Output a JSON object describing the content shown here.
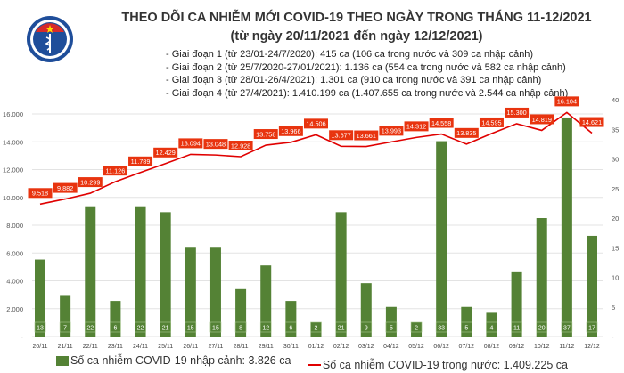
{
  "header": {
    "logo_text": "BỘ Y TẾ",
    "title": "THEO DÕI CA NHIỄM MỚI COVID-19 THEO NGÀY TRONG THÁNG 11-12/2021",
    "subtitle": "(từ ngày 20/11/2021 đến ngày 12/12/2021)",
    "notes": [
      "- Giai đoạn 1 (từ 23/01-24/7/2020): 415 ca (106 ca trong nước và 309 ca nhập cảnh)",
      "- Giai đoạn 2 (từ 25/7/2020-27/01/2021): 1.136 ca (554 ca trong nước và 582 ca nhập cảnh)",
      "- Giai đoạn 3 (từ 28/01-26/4/2021): 1.301 ca (910 ca trong nước và 391 ca nhập cảnh)",
      "- Giai đoạn 4 (từ 27/4/2021): 1.410.199 ca (1.407.655 ca trong nước và 2.544 ca nhập cảnh)"
    ]
  },
  "chart_data": {
    "type": "bar+line",
    "categories": [
      "20/11",
      "21/11",
      "22/11",
      "23/11",
      "24/11",
      "25/11",
      "26/11",
      "27/11",
      "28/11",
      "29/11",
      "30/11",
      "01/12",
      "02/12",
      "03/12",
      "04/12",
      "05/12",
      "06/12",
      "07/12",
      "08/12",
      "09/12",
      "10/12",
      "11/12",
      "12/12"
    ],
    "series": [
      {
        "name": "Số ca nhiễm COVID-19 nhập cảnh: 3.826 ca",
        "type": "bar",
        "axis": "right",
        "color": "#548235",
        "values": [
          13,
          7,
          22,
          6,
          22,
          21,
          15,
          15,
          8,
          12,
          6,
          2,
          21,
          9,
          5,
          2,
          33,
          5,
          4,
          11,
          20,
          37,
          17
        ],
        "labels": [
          "13",
          "7",
          "22",
          "6",
          "22",
          "21",
          "15",
          "15",
          "8",
          "12",
          "6",
          "2",
          "21",
          "9",
          "5",
          "2",
          "33",
          "5",
          "4",
          "11",
          "20",
          "37",
          "17"
        ]
      },
      {
        "name": "Số ca nhiễm COVID-19 trong nước: 1.409.225 ca",
        "type": "line",
        "axis": "left",
        "color": "#e00000",
        "values": [
          9518,
          9882,
          10299,
          11126,
          11789,
          12429,
          13094,
          13048,
          12928,
          13758,
          13966,
          14506,
          13677,
          13661,
          13993,
          14312,
          14558,
          13835,
          14595,
          15300,
          14819,
          16104,
          14621
        ],
        "labels": [
          "9.518",
          "9.882",
          "10.299",
          "11.126",
          "11.789",
          "12.429",
          "13.094",
          "13.048",
          "12.928",
          "13.758",
          "13.966",
          "14.506",
          "13.677",
          "13.661",
          "13.993",
          "14.312",
          "14.558",
          "13.835",
          "14.595",
          "15.300",
          "14.819",
          "16.104",
          "14.621"
        ]
      }
    ],
    "left_axis": {
      "range": [
        0,
        16000
      ],
      "ticks": [
        "-",
        "2.000",
        "4.000",
        "6.000",
        "8.000",
        "10.000",
        "12.000",
        "14.000",
        "16.000"
      ]
    },
    "right_axis": {
      "range": [
        0,
        40
      ],
      "ticks": [
        "-",
        "5",
        "10",
        "15",
        "20",
        "25",
        "30",
        "35",
        "40"
      ]
    },
    "grid": true,
    "legend_position": "bottom"
  }
}
